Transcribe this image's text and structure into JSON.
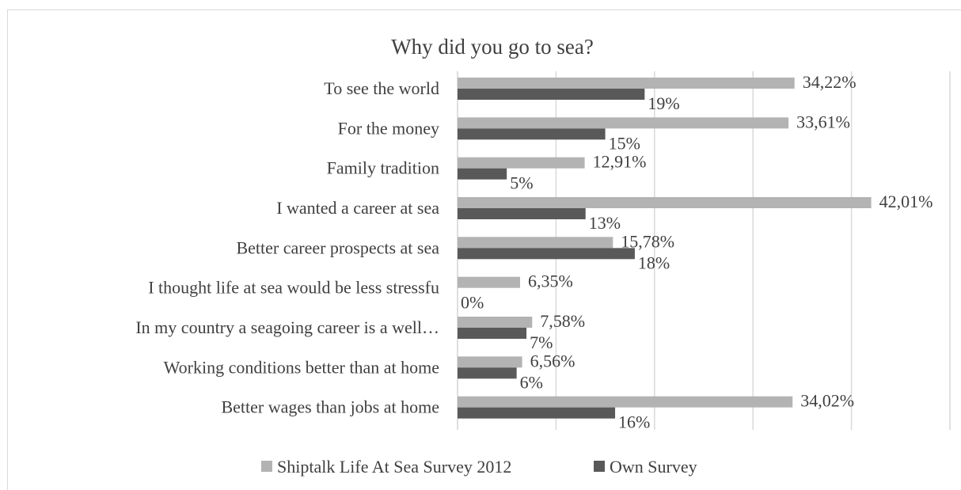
{
  "chart_data": {
    "type": "bar",
    "orientation": "horizontal",
    "title": "Why did you go to sea?",
    "categories": [
      "To see the world",
      "For the money",
      "Family tradition",
      "I wanted a career at sea",
      "Better career prospects at sea",
      "I thought life at sea would be less stressfu",
      "In my country a seagoing career is a well…",
      "Working conditions better than at home",
      "Better wages than jobs at home"
    ],
    "series": [
      {
        "name": "Shiptalk Life At Sea Survey 2012",
        "color": "#b3b3b3",
        "values": [
          34.22,
          33.61,
          12.91,
          42.01,
          15.78,
          6.35,
          7.58,
          6.56,
          34.02
        ],
        "labels": [
          "34,22%",
          "33,61%",
          "12,91%",
          "42,01%",
          "15,78%",
          "6,35%",
          "7,58%",
          "6,56%",
          "34,02%"
        ]
      },
      {
        "name": "Own Survey",
        "color": "#595959",
        "values": [
          19,
          15,
          5,
          13,
          18,
          0,
          7,
          6,
          16
        ],
        "labels": [
          "19%",
          "15%",
          "5%",
          "13%",
          "18%",
          "0%",
          "7%",
          "6%",
          "16%"
        ]
      }
    ],
    "xlim": [
      0,
      50
    ],
    "grid": true,
    "legend_position": "bottom"
  }
}
